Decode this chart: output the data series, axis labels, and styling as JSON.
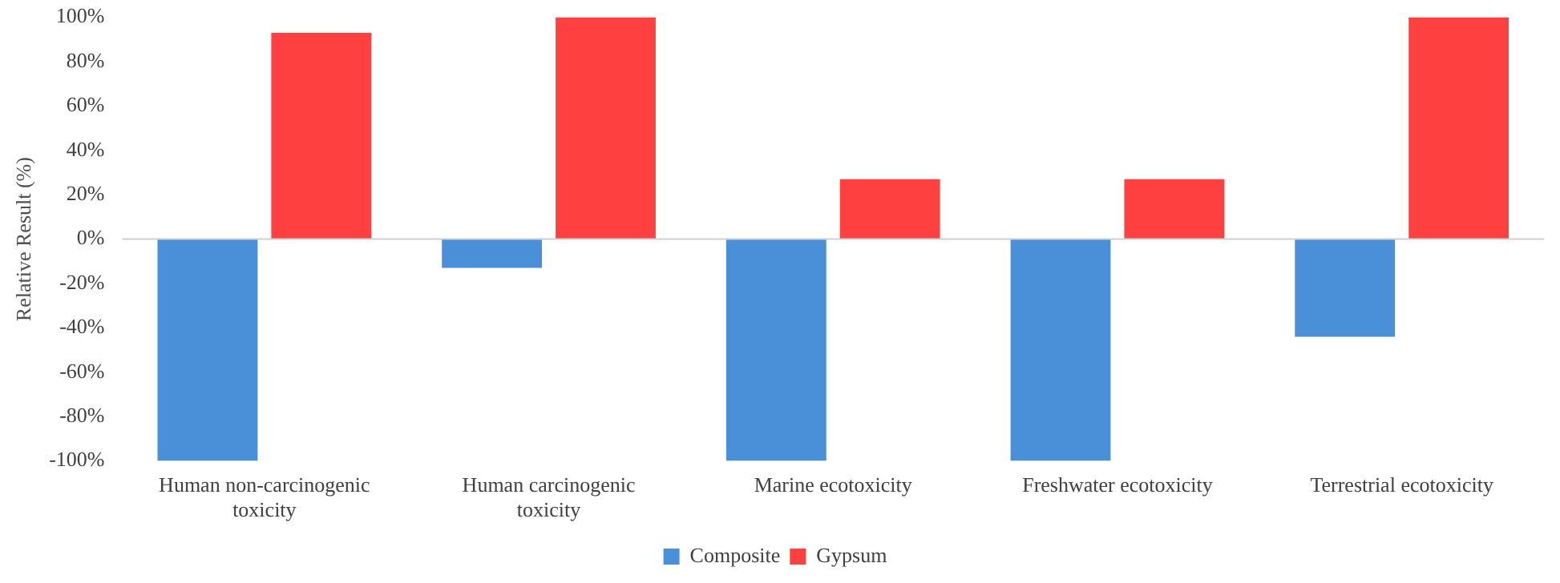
{
  "chart_data": {
    "type": "bar",
    "ylabel": "Relative Result (%)",
    "categories": [
      "Human non-carcinogenic toxicity",
      "Human carcinogenic toxicity",
      "Marine ecotoxicity",
      "Freshwater ecotoxicity",
      "Terrestrial ecotoxicity"
    ],
    "series": [
      {
        "name": "Composite",
        "color": "#4a90d9",
        "values": [
          -100,
          -13,
          -100,
          -100,
          -44
        ]
      },
      {
        "name": "Gypsum",
        "color": "#ff4040",
        "values": [
          93,
          100,
          27,
          27,
          100
        ]
      }
    ],
    "ylim": [
      -100,
      100
    ],
    "yticks": [
      {
        "value": -100,
        "label": "-100%"
      },
      {
        "value": -80,
        "label": "-80%"
      },
      {
        "value": -60,
        "label": "-60%"
      },
      {
        "value": -40,
        "label": "-40%"
      },
      {
        "value": -20,
        "label": "-20%"
      },
      {
        "value": 0,
        "label": "0%"
      },
      {
        "value": 20,
        "label": "20%"
      },
      {
        "value": 40,
        "label": "40%"
      },
      {
        "value": 60,
        "label": "60%"
      },
      {
        "value": 80,
        "label": "80%"
      },
      {
        "value": 100,
        "label": "100%"
      }
    ],
    "ref_lines": [
      {
        "axis": "y",
        "value": 0,
        "color": "#d0d0d0"
      }
    ],
    "grid": false,
    "legend": "bottom"
  }
}
